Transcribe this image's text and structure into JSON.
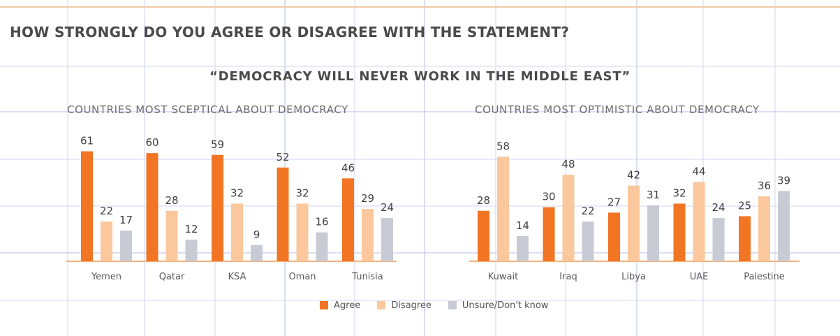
{
  "title": "HOW STRONGLY DO YOU AGREE OR DISAGREE WITH THE STATEMENT?",
  "subtitle": "“DEMOCRACY WILL NEVER WORK IN THE MIDDLE EAST”",
  "colors": {
    "agree": "#f27524",
    "disagree": "#fac89c",
    "unsure": "#c9cbd4",
    "grid": "#d0d4f0",
    "axis": "#f4b27c"
  },
  "legend": [
    "Agree",
    "Disagree",
    "Unsure/Don't know"
  ],
  "chart_data": [
    {
      "type": "bar",
      "title": "COUNTRIES MOST SCEPTICAL ABOUT DEMOCRACY",
      "categories": [
        "Yemen",
        "Qatar",
        "KSA",
        "Oman",
        "Tunisia"
      ],
      "series": [
        {
          "name": "Agree",
          "values": [
            61,
            60,
            59,
            52,
            46
          ]
        },
        {
          "name": "Disagree",
          "values": [
            22,
            28,
            32,
            32,
            29
          ]
        },
        {
          "name": "Unsure/Don't know",
          "values": [
            17,
            12,
            9,
            16,
            24
          ]
        }
      ],
      "ylim": [
        0,
        70
      ],
      "legend_position": "bottom"
    },
    {
      "type": "bar",
      "title": "COUNTRIES MOST OPTIMISTIC ABOUT DEMOCRACY",
      "categories": [
        "Kuwait",
        "Iraq",
        "Libya",
        "UAE",
        "Palestine"
      ],
      "series": [
        {
          "name": "Agree",
          "values": [
            28,
            30,
            27,
            32,
            25
          ]
        },
        {
          "name": "Disagree",
          "values": [
            58,
            48,
            42,
            44,
            36
          ]
        },
        {
          "name": "Unsure/Don't know",
          "values": [
            14,
            22,
            31,
            24,
            39
          ]
        }
      ],
      "ylim": [
        0,
        70
      ],
      "legend_position": "bottom"
    }
  ]
}
